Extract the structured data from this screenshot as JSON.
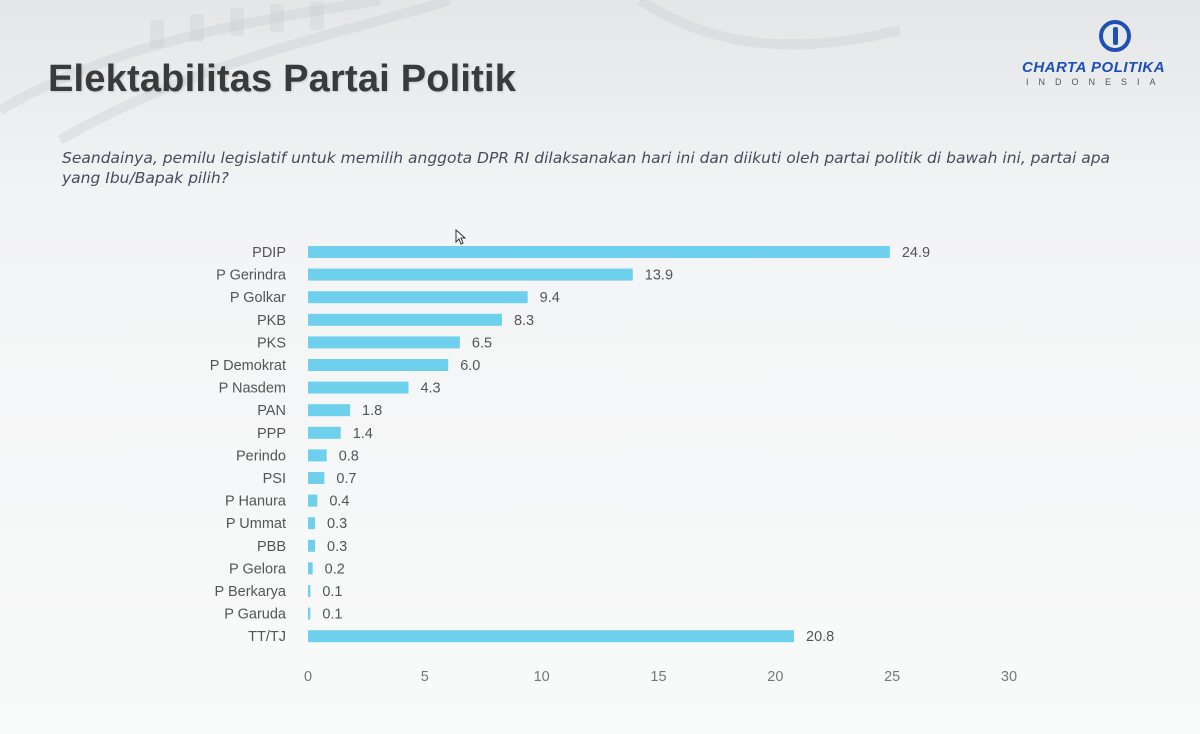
{
  "header": {
    "title": "Elektabilitas Partai Politik",
    "subtitle": "Seandainya, pemilu legislatif untuk memilih anggota DPR RI dilaksanakan hari ini dan diikuti oleh partai politik di bawah ini, partai apa yang Ibu/Bapak pilih?"
  },
  "logo": {
    "name": "CHARTA POLITIKA",
    "sub": "INDONESIA"
  },
  "colors": {
    "bar": "#6fd0ee",
    "text": "#555555",
    "title": "#3a3a3a",
    "brand": "#1f4fb4"
  },
  "chart_data": {
    "type": "bar",
    "orientation": "horizontal",
    "categories": [
      "PDIP",
      "P Gerindra",
      "P Golkar",
      "PKB",
      "PKS",
      "P Demokrat",
      "P Nasdem",
      "PAN",
      "PPP",
      "Perindo",
      "PSI",
      "P Hanura",
      "P Ummat",
      "PBB",
      "P Gelora",
      "P Berkarya",
      "P Garuda",
      "TT/TJ"
    ],
    "values": [
      24.9,
      13.9,
      9.4,
      8.3,
      6.5,
      6.0,
      4.3,
      1.8,
      1.4,
      0.8,
      0.7,
      0.4,
      0.3,
      0.3,
      0.2,
      0.1,
      0.1,
      20.8
    ],
    "value_labels": [
      "24.9",
      "13.9",
      "9.4",
      "8.3",
      "6.5",
      "6.0",
      "4.3",
      "1.8",
      "1.4",
      "0.8",
      "0.7",
      "0.4",
      "0.3",
      "0.3",
      "0.2",
      "0.1",
      "0.1",
      "20.8"
    ],
    "xlim": [
      0,
      30
    ],
    "xticks": [
      "0",
      "5",
      "10",
      "15",
      "20",
      "25",
      "30"
    ],
    "grid": false,
    "legend": "none"
  }
}
